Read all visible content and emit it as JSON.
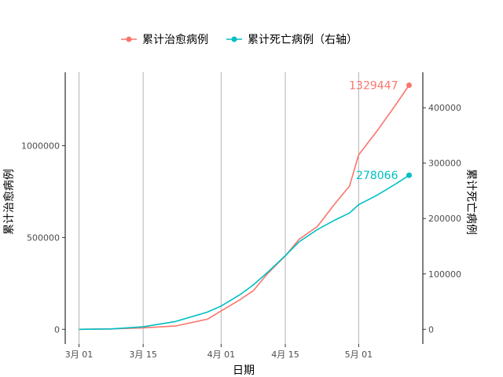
{
  "chart_data": {
    "type": "line",
    "title": "",
    "xlabel": "日期",
    "ylabel_left": "累计治愈病例",
    "ylabel_right": "累计死亡病例",
    "x_ticks": [
      "3月 01",
      "3月 15",
      "4月 01",
      "4月 15",
      "5月 01"
    ],
    "x_tick_dates": [
      "2020-03-01",
      "2020-03-15",
      "2020-04-01",
      "2020-04-15",
      "2020-05-01"
    ],
    "xlim": [
      "2020-02-27",
      "2020-05-15"
    ],
    "ylim_left": [
      -80000,
      1400000
    ],
    "ylim_right": [
      -26500,
      464000
    ],
    "y_ticks_left": [
      0,
      500000,
      1000000
    ],
    "y_tick_labels_left": [
      "0",
      "500000",
      "1000000"
    ],
    "y_ticks_right": [
      0,
      100000,
      200000,
      300000,
      400000
    ],
    "y_tick_labels_right": [
      "0",
      "100000",
      "200000",
      "300000",
      "400000"
    ],
    "grid": "vertical-major",
    "legend_position": "top",
    "series": [
      {
        "name": "累计治愈病例",
        "axis": "left",
        "color": "#F8766D",
        "end_label": "1329447",
        "points": [
          [
            "2020-03-01",
            0
          ],
          [
            "2020-03-08",
            2000
          ],
          [
            "2020-03-15",
            8000
          ],
          [
            "2020-03-22",
            18000
          ],
          [
            "2020-03-29",
            55000
          ],
          [
            "2020-04-01",
            100000
          ],
          [
            "2020-04-05",
            160000
          ],
          [
            "2020-04-08",
            210000
          ],
          [
            "2020-04-11",
            300000
          ],
          [
            "2020-04-15",
            400000
          ],
          [
            "2020-04-18",
            490000
          ],
          [
            "2020-04-22",
            560000
          ],
          [
            "2020-04-26",
            690000
          ],
          [
            "2020-04-29",
            780000
          ],
          [
            "2020-05-01",
            950000
          ],
          [
            "2020-05-05",
            1080000
          ],
          [
            "2020-05-09",
            1220000
          ],
          [
            "2020-05-12",
            1329447
          ]
        ]
      },
      {
        "name": "累计死亡病例",
        "axis": "right",
        "color": "#00BFC4",
        "end_label": "278066",
        "points": [
          [
            "2020-03-01",
            0
          ],
          [
            "2020-03-08",
            700
          ],
          [
            "2020-03-15",
            4500
          ],
          [
            "2020-03-22",
            14000
          ],
          [
            "2020-03-29",
            31000
          ],
          [
            "2020-04-01",
            42000
          ],
          [
            "2020-04-05",
            62000
          ],
          [
            "2020-04-08",
            80000
          ],
          [
            "2020-04-11",
            102000
          ],
          [
            "2020-04-15",
            133000
          ],
          [
            "2020-04-18",
            158000
          ],
          [
            "2020-04-22",
            180000
          ],
          [
            "2020-04-26",
            198000
          ],
          [
            "2020-04-29",
            210000
          ],
          [
            "2020-05-01",
            225000
          ],
          [
            "2020-05-05",
            242000
          ],
          [
            "2020-05-09",
            262000
          ],
          [
            "2020-05-12",
            278066
          ]
        ]
      }
    ]
  }
}
